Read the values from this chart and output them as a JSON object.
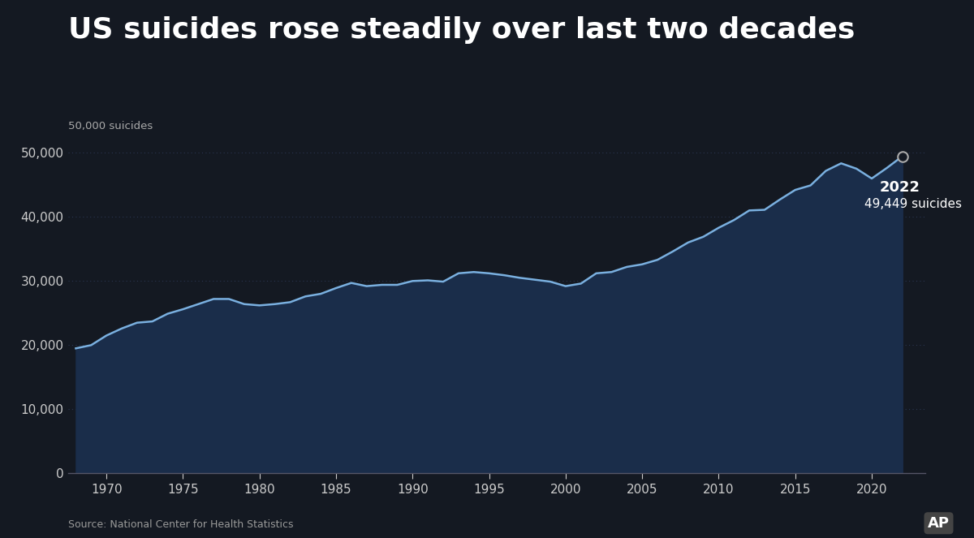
{
  "title": "US suicides rose steadily over last two decades",
  "source": "Source: National Center for Health Statistics",
  "bg_color": "#141922",
  "line_color": "#7ab0e0",
  "fill_color": "#1a2d4a",
  "title_color": "#ffffff",
  "axis_color": "#cccccc",
  "grid_color": "#2a3550",
  "ylabel_text": "50,000 suicides",
  "annotation_year": "2022",
  "annotation_value": "49,449 suicides",
  "years": [
    1968,
    1969,
    1970,
    1971,
    1972,
    1973,
    1974,
    1975,
    1976,
    1977,
    1978,
    1979,
    1980,
    1981,
    1982,
    1983,
    1984,
    1985,
    1986,
    1987,
    1988,
    1989,
    1990,
    1991,
    1992,
    1993,
    1994,
    1995,
    1996,
    1997,
    1998,
    1999,
    2000,
    2001,
    2002,
    2003,
    2004,
    2005,
    2006,
    2007,
    2008,
    2009,
    2010,
    2011,
    2012,
    2013,
    2014,
    2015,
    2016,
    2017,
    2018,
    2019,
    2020,
    2021,
    2022
  ],
  "values": [
    19500,
    20000,
    21500,
    22600,
    23500,
    23700,
    24900,
    25600,
    26400,
    27200,
    27200,
    26400,
    26200,
    26400,
    26700,
    27600,
    28000,
    28900,
    29700,
    29200,
    29400,
    29400,
    30000,
    30100,
    29900,
    31200,
    31400,
    31200,
    30900,
    30500,
    30200,
    29900,
    29200,
    29600,
    31200,
    31400,
    32200,
    32600,
    33300,
    34600,
    36000,
    36900,
    38300,
    39500,
    41000,
    41100,
    42700,
    44200,
    44900,
    47173,
    48344,
    47511,
    45979,
    47646,
    49449
  ],
  "xlim": [
    1967.5,
    2023.5
  ],
  "ylim": [
    0,
    52000
  ],
  "yticks": [
    0,
    10000,
    20000,
    30000,
    40000,
    50000
  ],
  "ytick_labels": [
    "0",
    "10,000",
    "20,000",
    "30,000",
    "40,000",
    "50,000"
  ],
  "xticks": [
    1970,
    1975,
    1980,
    1985,
    1990,
    1995,
    2000,
    2005,
    2010,
    2015,
    2020
  ]
}
